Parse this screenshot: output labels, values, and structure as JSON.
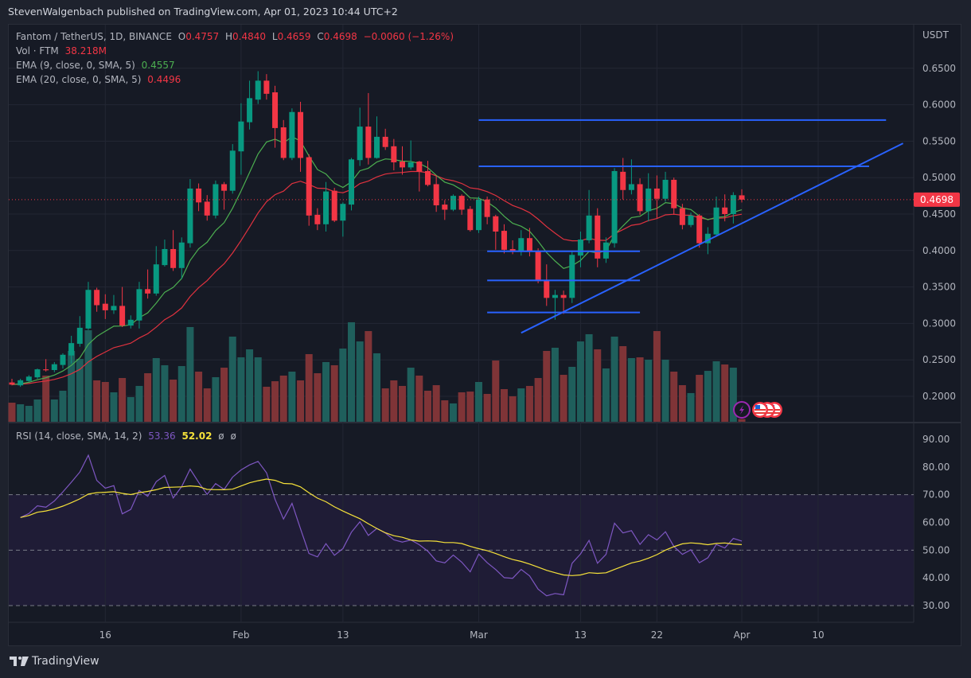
{
  "header": {
    "publisher_line": "StevenWalgenbach published on TradingView.com, Apr 01, 2023 10:44 UTC+2"
  },
  "legend": {
    "symbol": "Fantom / TetherUS, 1D, BINANCE",
    "o_label": "O",
    "o": "0.4757",
    "h_label": "H",
    "h": "0.4840",
    "l_label": "L",
    "l": "0.4659",
    "c_label": "C",
    "c": "0.4698",
    "change": "−0.0060 (−1.26%)"
  },
  "volume_legend": {
    "label": "Vol · FTM",
    "value": "38.218M"
  },
  "ema9_legend": {
    "label": "EMA (9, close, 0, SMA, 5)",
    "value": "0.4557"
  },
  "ema20_legend": {
    "label": "EMA (20, close, 0, SMA, 5)",
    "value": "0.4496"
  },
  "rsi_legend": {
    "label": "RSI (14, close, SMA, 14, 2)",
    "rsi": "53.36",
    "sma": "52.02",
    "extra1": "ø",
    "extra2": "ø"
  },
  "price_axis": {
    "unit": "USDT",
    "ticks": [
      "0.6500",
      "0.6000",
      "0.5500",
      "0.5000",
      "0.4500",
      "0.4000",
      "0.3500",
      "0.3000",
      "0.2500",
      "0.2000"
    ],
    "last_price_label": "0.4698"
  },
  "rsi_axis": {
    "ticks": [
      "90.00",
      "80.00",
      "70.00",
      "60.00",
      "50.00",
      "40.00",
      "30.00"
    ]
  },
  "time_axis": {
    "ticks": [
      {
        "date": "2023-01-16",
        "label": "16"
      },
      {
        "date": "2023-02-01",
        "label": "Feb"
      },
      {
        "date": "2023-02-13",
        "label": "13"
      },
      {
        "date": "2023-03-01",
        "label": "Mar"
      },
      {
        "date": "2023-03-13",
        "label": "13"
      },
      {
        "date": "2023-03-22",
        "label": "22"
      },
      {
        "date": "2023-04-01",
        "label": "Apr"
      },
      {
        "date": "2023-04-10",
        "label": "10"
      }
    ]
  },
  "event_icons": [
    "lightning-icon",
    "us-flag-icon",
    "us-flag-icon",
    "us-flag-icon"
  ],
  "footer": {
    "brand": "TradingView"
  },
  "colors": {
    "up": "#089981",
    "down": "#f23645",
    "volume_up": "#1f5f5c",
    "volume_down": "#7f3437",
    "ema9": "#4caf50",
    "ema20": "#e0323f",
    "rsi": "#7e57c2",
    "rsi_sma": "#f5e13a",
    "drawing": "#2962ff",
    "rsi_band": "#1f1c36"
  },
  "chart_data": {
    "type": "candlestick",
    "title": "Fantom / TetherUS, 1D, BINANCE",
    "ylabel": "USDT",
    "ylim": [
      0.16,
      0.67
    ],
    "rsi_ylim": [
      25,
      95
    ],
    "rsi_levels": [
      70,
      50,
      30
    ],
    "grid": true,
    "indicators": [
      "Vol",
      "EMA 9",
      "EMA 20",
      "RSI 14 + SMA 14"
    ],
    "columns": [
      "date",
      "open",
      "high",
      "low",
      "close",
      "volume_M"
    ],
    "candles": [
      [
        "2023-01-05",
        0.219,
        0.224,
        0.215,
        0.216,
        275
      ],
      [
        "2023-01-06",
        0.215,
        0.224,
        0.213,
        0.222,
        252
      ],
      [
        "2023-01-07",
        0.221,
        0.229,
        0.22,
        0.227,
        229
      ],
      [
        "2023-01-08",
        0.226,
        0.238,
        0.224,
        0.237,
        321
      ],
      [
        "2023-01-09",
        0.237,
        0.251,
        0.234,
        0.236,
        665
      ],
      [
        "2023-01-10",
        0.236,
        0.247,
        0.233,
        0.244,
        321
      ],
      [
        "2023-01-11",
        0.243,
        0.259,
        0.238,
        0.257,
        447
      ],
      [
        "2023-01-12",
        0.256,
        0.283,
        0.245,
        0.273,
        1020
      ],
      [
        "2023-01-13",
        0.272,
        0.31,
        0.268,
        0.294,
        905
      ],
      [
        "2023-01-14",
        0.293,
        0.357,
        0.291,
        0.346,
        1318
      ],
      [
        "2023-01-15",
        0.346,
        0.349,
        0.316,
        0.325,
        596
      ],
      [
        "2023-01-16",
        0.327,
        0.34,
        0.306,
        0.318,
        573
      ],
      [
        "2023-01-17",
        0.318,
        0.339,
        0.313,
        0.324,
        424
      ],
      [
        "2023-01-18",
        0.324,
        0.35,
        0.295,
        0.297,
        630
      ],
      [
        "2023-01-19",
        0.297,
        0.311,
        0.293,
        0.305,
        355
      ],
      [
        "2023-01-20",
        0.304,
        0.357,
        0.293,
        0.347,
        516
      ],
      [
        "2023-01-21",
        0.347,
        0.374,
        0.334,
        0.341,
        699
      ],
      [
        "2023-01-22",
        0.341,
        0.406,
        0.338,
        0.381,
        917
      ],
      [
        "2023-01-23",
        0.38,
        0.415,
        0.378,
        0.402,
        814
      ],
      [
        "2023-01-24",
        0.402,
        0.428,
        0.372,
        0.376,
        607
      ],
      [
        "2023-01-25",
        0.376,
        0.418,
        0.361,
        0.411,
        802
      ],
      [
        "2023-01-26",
        0.41,
        0.498,
        0.404,
        0.485,
        1364
      ],
      [
        "2023-01-27",
        0.485,
        0.492,
        0.454,
        0.466,
        722
      ],
      [
        "2023-01-28",
        0.467,
        0.476,
        0.441,
        0.448,
        481
      ],
      [
        "2023-01-29",
        0.448,
        0.496,
        0.444,
        0.491,
        642
      ],
      [
        "2023-01-30",
        0.491,
        0.494,
        0.456,
        0.482,
        779
      ],
      [
        "2023-01-31",
        0.482,
        0.546,
        0.478,
        0.537,
        1226
      ],
      [
        "2023-02-01",
        0.536,
        0.602,
        0.504,
        0.577,
        928
      ],
      [
        "2023-02-02",
        0.576,
        0.633,
        0.566,
        0.609,
        1043
      ],
      [
        "2023-02-03",
        0.607,
        0.646,
        0.601,
        0.633,
        928
      ],
      [
        "2023-02-04",
        0.633,
        0.642,
        0.607,
        0.615,
        504
      ],
      [
        "2023-02-05",
        0.617,
        0.626,
        0.541,
        0.568,
        584
      ],
      [
        "2023-02-06",
        0.569,
        0.579,
        0.524,
        0.527,
        665
      ],
      [
        "2023-02-07",
        0.527,
        0.595,
        0.524,
        0.59,
        722
      ],
      [
        "2023-02-08",
        0.59,
        0.604,
        0.508,
        0.527,
        596
      ],
      [
        "2023-02-09",
        0.528,
        0.532,
        0.434,
        0.448,
        974
      ],
      [
        "2023-02-10",
        0.449,
        0.458,
        0.428,
        0.436,
        699
      ],
      [
        "2023-02-11",
        0.436,
        0.494,
        0.426,
        0.481,
        860
      ],
      [
        "2023-02-12",
        0.482,
        0.486,
        0.439,
        0.441,
        814
      ],
      [
        "2023-02-13",
        0.441,
        0.466,
        0.419,
        0.464,
        1054
      ],
      [
        "2023-02-14",
        0.463,
        0.527,
        0.455,
        0.525,
        1433
      ],
      [
        "2023-02-15",
        0.524,
        0.596,
        0.516,
        0.57,
        1157
      ],
      [
        "2023-02-16",
        0.57,
        0.616,
        0.518,
        0.527,
        1306
      ],
      [
        "2023-02-17",
        0.527,
        0.584,
        0.526,
        0.556,
        986
      ],
      [
        "2023-02-18",
        0.556,
        0.567,
        0.538,
        0.542,
        481
      ],
      [
        "2023-02-19",
        0.543,
        0.553,
        0.51,
        0.521,
        596
      ],
      [
        "2023-02-20",
        0.522,
        0.543,
        0.504,
        0.514,
        516
      ],
      [
        "2023-02-21",
        0.514,
        0.551,
        0.511,
        0.521,
        779
      ],
      [
        "2023-02-22",
        0.522,
        0.523,
        0.481,
        0.508,
        665
      ],
      [
        "2023-02-23",
        0.509,
        0.523,
        0.488,
        0.49,
        447
      ],
      [
        "2023-02-24",
        0.491,
        0.503,
        0.453,
        0.462,
        527
      ],
      [
        "2023-02-25",
        0.463,
        0.469,
        0.442,
        0.456,
        309
      ],
      [
        "2023-02-26",
        0.456,
        0.477,
        0.454,
        0.475,
        264
      ],
      [
        "2023-02-27",
        0.475,
        0.477,
        0.449,
        0.456,
        424
      ],
      [
        "2023-02-28",
        0.457,
        0.461,
        0.426,
        0.428,
        435
      ],
      [
        "2023-03-01",
        0.428,
        0.474,
        0.424,
        0.47,
        573
      ],
      [
        "2023-03-02",
        0.47,
        0.474,
        0.436,
        0.446,
        401
      ],
      [
        "2023-03-03",
        0.447,
        0.449,
        0.401,
        0.426,
        882
      ],
      [
        "2023-03-04",
        0.427,
        0.436,
        0.396,
        0.401,
        470
      ],
      [
        "2023-03-05",
        0.402,
        0.414,
        0.395,
        0.399,
        367
      ],
      [
        "2023-03-06",
        0.399,
        0.428,
        0.393,
        0.417,
        481
      ],
      [
        "2023-03-07",
        0.417,
        0.431,
        0.392,
        0.399,
        516
      ],
      [
        "2023-03-08",
        0.399,
        0.403,
        0.355,
        0.358,
        630
      ],
      [
        "2023-03-09",
        0.359,
        0.381,
        0.324,
        0.335,
        1020
      ],
      [
        "2023-03-10",
        0.335,
        0.346,
        0.305,
        0.339,
        1066
      ],
      [
        "2023-03-11",
        0.339,
        0.345,
        0.313,
        0.335,
        676
      ],
      [
        "2023-03-12",
        0.335,
        0.4,
        0.328,
        0.394,
        791
      ],
      [
        "2023-03-13",
        0.393,
        0.426,
        0.377,
        0.415,
        1157
      ],
      [
        "2023-03-14",
        0.414,
        0.483,
        0.41,
        0.448,
        1261
      ],
      [
        "2023-03-15",
        0.448,
        0.458,
        0.377,
        0.389,
        1043
      ],
      [
        "2023-03-16",
        0.389,
        0.418,
        0.383,
        0.411,
        768
      ],
      [
        "2023-03-17",
        0.41,
        0.513,
        0.404,
        0.509,
        1226
      ],
      [
        "2023-03-18",
        0.508,
        0.527,
        0.47,
        0.483,
        1089
      ],
      [
        "2023-03-19",
        0.483,
        0.525,
        0.477,
        0.491,
        917
      ],
      [
        "2023-03-20",
        0.491,
        0.499,
        0.449,
        0.454,
        928
      ],
      [
        "2023-03-21",
        0.454,
        0.506,
        0.44,
        0.485,
        894
      ],
      [
        "2023-03-22",
        0.485,
        0.503,
        0.444,
        0.471,
        1306
      ],
      [
        "2023-03-23",
        0.471,
        0.508,
        0.467,
        0.497,
        894
      ],
      [
        "2023-03-24",
        0.497,
        0.5,
        0.449,
        0.458,
        722
      ],
      [
        "2023-03-25",
        0.458,
        0.464,
        0.429,
        0.435,
        527
      ],
      [
        "2023-03-26",
        0.435,
        0.452,
        0.432,
        0.448,
        413
      ],
      [
        "2023-03-27",
        0.448,
        0.45,
        0.404,
        0.41,
        676
      ],
      [
        "2023-03-28",
        0.41,
        0.432,
        0.395,
        0.423,
        733
      ],
      [
        "2023-03-29",
        0.422,
        0.474,
        0.419,
        0.459,
        871
      ],
      [
        "2023-03-30",
        0.459,
        0.477,
        0.44,
        0.45,
        825
      ],
      [
        "2023-03-31",
        0.45,
        0.48,
        0.437,
        0.476,
        779
      ],
      [
        "2023-04-01",
        0.4757,
        0.484,
        0.4659,
        0.4698,
        38.218
      ]
    ],
    "drawings": [
      {
        "kind": "horizontal-segment",
        "price": 0.579,
        "from": "2023-03-01",
        "to": "2023-04-18"
      },
      {
        "kind": "horizontal-segment",
        "price": 0.5155,
        "from": "2023-03-01",
        "to": "2023-04-16"
      },
      {
        "kind": "horizontal-segment",
        "price": 0.399,
        "from": "2023-03-02",
        "to": "2023-03-20"
      },
      {
        "kind": "horizontal-segment",
        "price": 0.359,
        "from": "2023-03-02",
        "to": "2023-03-20"
      },
      {
        "kind": "horizontal-segment",
        "price": 0.315,
        "from": "2023-03-02",
        "to": "2023-03-20"
      },
      {
        "kind": "trend-line",
        "from": [
          "2023-03-06",
          0.287
        ],
        "to": [
          "2023-04-20",
          0.547
        ]
      }
    ]
  }
}
